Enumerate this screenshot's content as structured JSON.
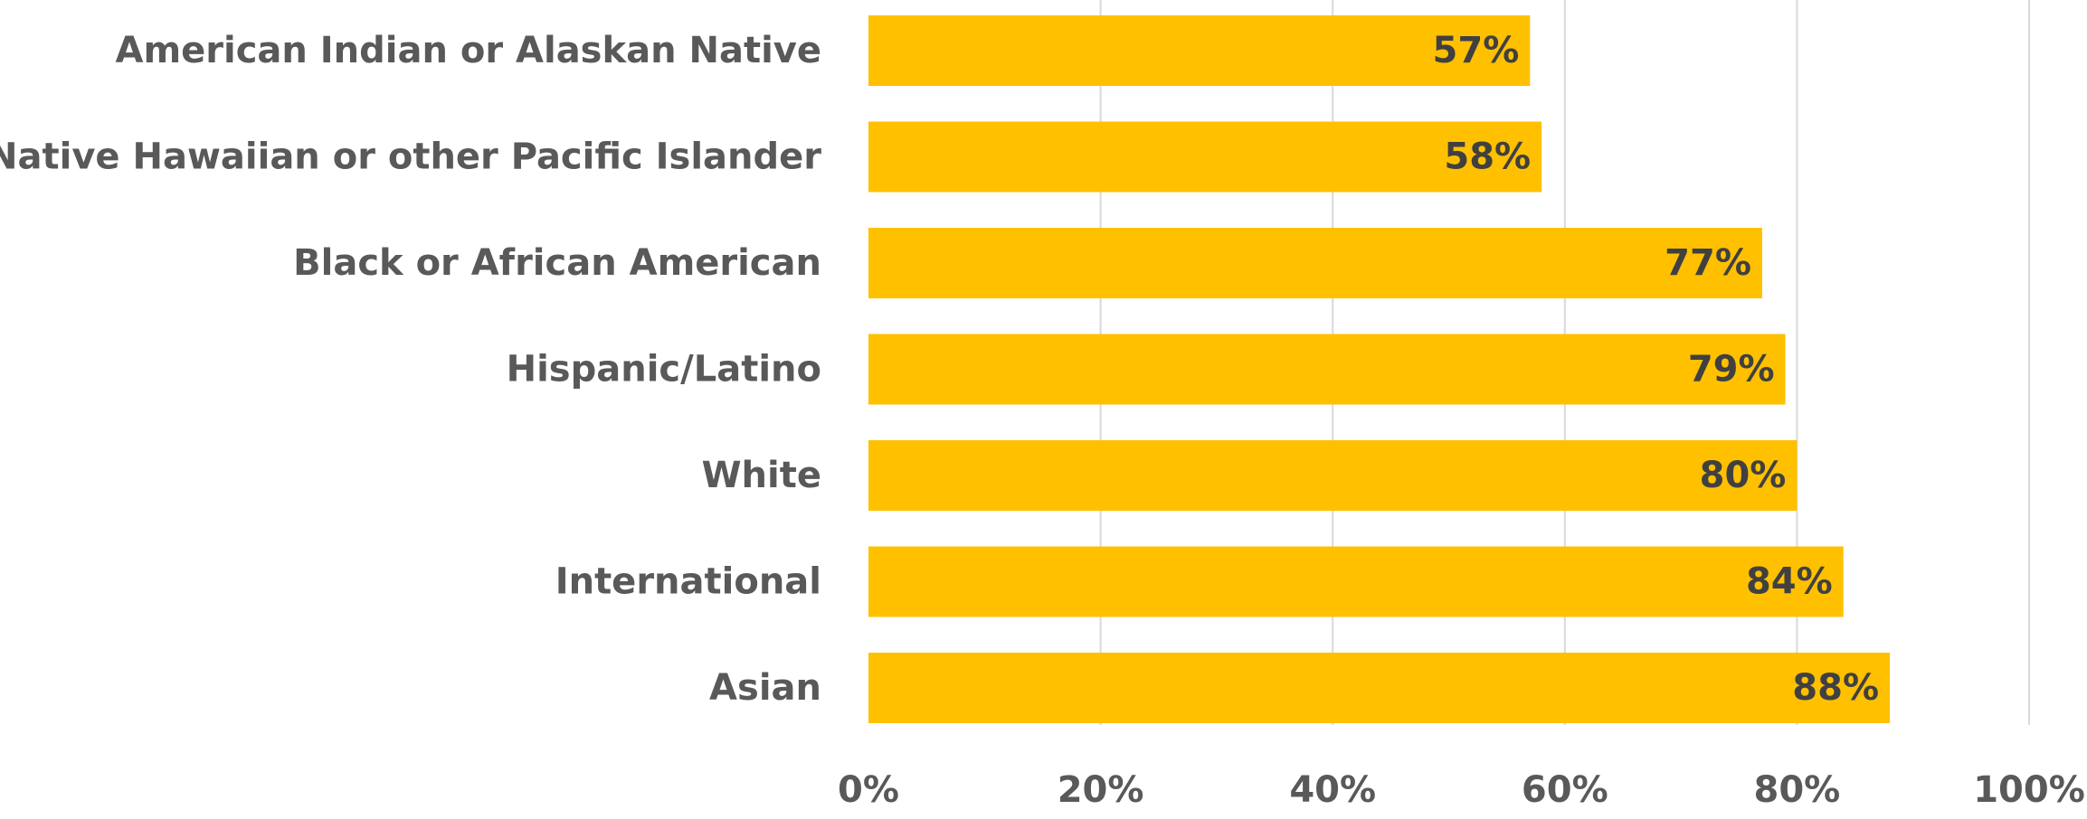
{
  "chart_data": {
    "type": "bar",
    "orientation": "horizontal",
    "title": "",
    "xlabel": "",
    "ylabel": "",
    "categories": [
      "American Indian or Alaskan Native",
      "Native Hawaiian or other Pacific Islander",
      "Black or African American",
      "Hispanic/Latino",
      "White",
      "International",
      "Asian"
    ],
    "values": [
      57,
      58,
      77,
      79,
      80,
      84,
      88
    ],
    "data_labels": [
      "57%",
      "58%",
      "77%",
      "79%",
      "80%",
      "84%",
      "88%"
    ],
    "xlim": [
      0,
      100
    ],
    "x_ticks": [
      0,
      20,
      40,
      60,
      80,
      100
    ],
    "x_tick_labels": [
      "0%",
      "20%",
      "40%",
      "60%",
      "80%",
      "100%"
    ],
    "grid": "vertical",
    "legend": "none",
    "bar_color": "#FFC000"
  }
}
